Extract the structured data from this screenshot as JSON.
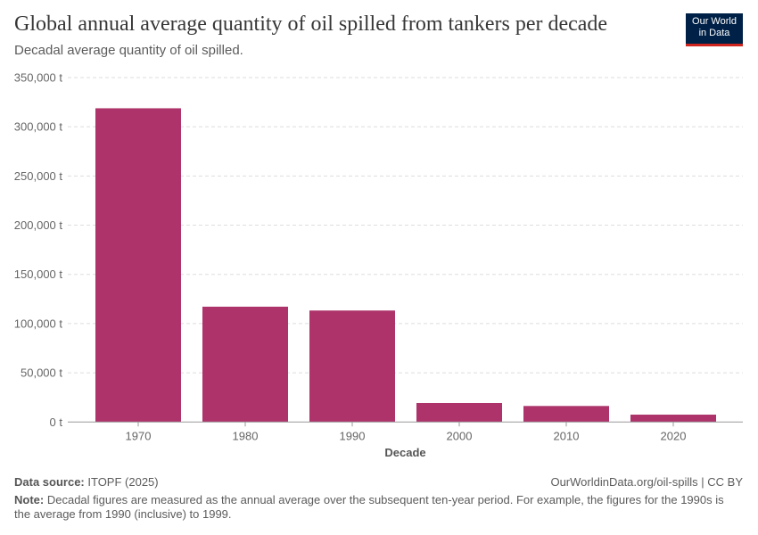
{
  "title": "Global annual average quantity of oil spilled from tankers per decade",
  "subtitle": "Decadal average quantity of oil spilled.",
  "logo": "Our World in Data",
  "chart_data": {
    "type": "bar",
    "categories": [
      "1970",
      "1980",
      "1990",
      "2000",
      "2010",
      "2020"
    ],
    "values": [
      318800,
      117200,
      113300,
      19300,
      16300,
      7500
    ],
    "xlabel": "Decade",
    "ylabel": "",
    "ylim": [
      0,
      350000
    ],
    "yticks": [
      0,
      50000,
      100000,
      150000,
      200000,
      250000,
      300000,
      350000
    ],
    "ytick_labels": [
      "0 t",
      "50,000 t",
      "100,000 t",
      "150,000 t",
      "200,000 t",
      "250,000 t",
      "300,000 t",
      "350,000 t"
    ],
    "grid": true,
    "color": "#ad336a"
  },
  "footer": {
    "source_label": "Data source:",
    "source": "ITOPF (2025)",
    "url": "OurWorldinData.org/oil-spills | CC BY",
    "note_label": "Note:",
    "note": "Decadal figures are measured as the annual average over the subsequent ten-year period. For example, the figures for the 1990s is the average from 1990 (inclusive) to 1999."
  }
}
